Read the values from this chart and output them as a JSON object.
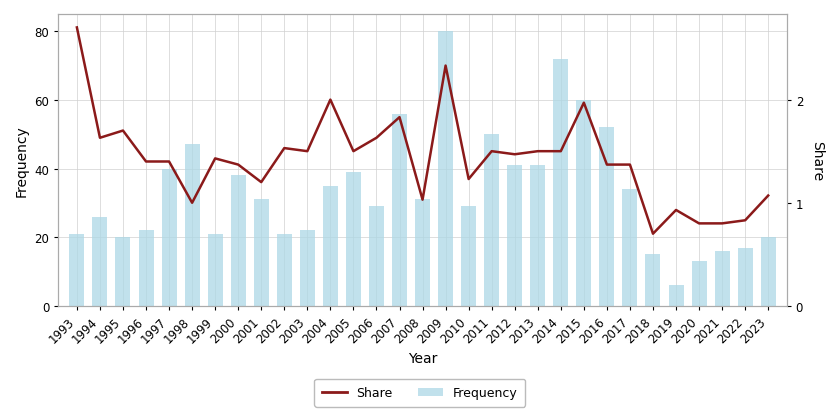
{
  "years": [
    1993,
    1994,
    1995,
    1996,
    1997,
    1998,
    1999,
    2000,
    2001,
    2002,
    2003,
    2004,
    2005,
    2006,
    2007,
    2008,
    2009,
    2010,
    2011,
    2012,
    2013,
    2014,
    2015,
    2016,
    2017,
    2018,
    2019,
    2020,
    2021,
    2022,
    2023
  ],
  "frequency": [
    21,
    26,
    20,
    22,
    40,
    47,
    21,
    38,
    31,
    21,
    22,
    35,
    39,
    29,
    56,
    31,
    80,
    29,
    50,
    41,
    41,
    72,
    60,
    52,
    34,
    15,
    6,
    13,
    16,
    17,
    20
  ],
  "share": [
    2.7,
    1.63,
    1.7,
    1.4,
    1.4,
    1.0,
    1.43,
    1.37,
    1.2,
    1.53,
    1.5,
    2.0,
    1.5,
    1.63,
    1.83,
    1.03,
    2.33,
    1.23,
    1.5,
    1.47,
    1.5,
    1.5,
    1.97,
    1.37,
    1.37,
    0.7,
    0.93,
    0.8,
    0.8,
    0.83,
    1.07
  ],
  "bar_color": "#add8e6",
  "bar_alpha": 0.75,
  "line_color": "#8b1a1a",
  "xlabel": "Year",
  "ylabel_left": "Frequency",
  "ylabel_right": "Share",
  "freq_ylim": [
    0,
    85
  ],
  "freq_yticks": [
    0,
    20,
    40,
    60,
    80
  ],
  "share_ylim": [
    0,
    2.83
  ],
  "share_yticks": [
    0,
    1,
    2
  ],
  "background_color": "#ffffff",
  "plot_bg_color": "#ffffff",
  "grid_color": "#d0d0d0",
  "legend_share_label": "Share",
  "legend_freq_label": "Frequency",
  "line_width": 1.8,
  "bar_width": 0.65
}
